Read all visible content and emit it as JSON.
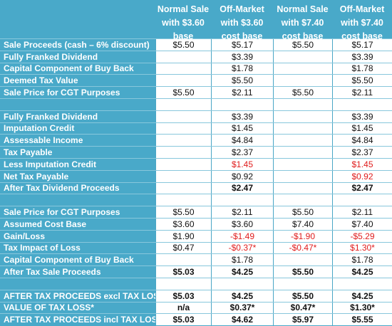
{
  "headers": [
    "Normal Sale with $3.60 base",
    "Off-Market with $3.60 cost base",
    "Normal Sale with $7.40 cost base",
    "Off-Market with $7.40 cost base"
  ],
  "rows": [
    {
      "label": "Sale Proceeds (cash – 6% discount)",
      "cells": [
        "$5.50",
        "$5.17",
        "$5.50",
        "$5.17"
      ]
    },
    {
      "label": "Fully Franked Dividend",
      "cells": [
        "",
        "$3.39",
        "",
        "$3.39"
      ]
    },
    {
      "label": "Capital Component  of Buy Back",
      "cells": [
        "",
        "$1.78",
        "",
        "$1.78"
      ]
    },
    {
      "label": "Deemed Tax Value",
      "cells": [
        "",
        "$5.50",
        "",
        "$5.50"
      ]
    },
    {
      "label": "Sale Price for CGT Purposes",
      "cells": [
        "$5.50",
        "$2.11",
        "$5.50",
        "$2.11"
      ]
    },
    {
      "label": "",
      "cells": [
        "",
        "",
        "",
        ""
      ]
    },
    {
      "label": "Fully Franked Dividend",
      "cells": [
        "",
        "$3.39",
        "",
        "$3.39"
      ]
    },
    {
      "label": "Imputation Credit",
      "cells": [
        "",
        "$1.45",
        "",
        "$1.45"
      ]
    },
    {
      "label": "Assessable Income",
      "cells": [
        "",
        "$4.84",
        "",
        "$4.84"
      ]
    },
    {
      "label": "Tax Payable",
      "cells": [
        "",
        "$2.37",
        "",
        "$2.37"
      ]
    },
    {
      "label": "Less Imputation Credit",
      "cells": [
        "",
        "$1.45",
        "",
        "$1.45"
      ]
    },
    {
      "label": "Net Tax Payable",
      "cells": [
        "",
        "$0.92",
        "",
        "$0.92"
      ]
    },
    {
      "label": "After Tax Dividend Proceeds",
      "cells": [
        "",
        "$2.47",
        "",
        "$2.47"
      ]
    },
    {
      "label": "",
      "cells": [
        "",
        "",
        "",
        ""
      ]
    },
    {
      "label": "Sale Price for CGT Purposes",
      "cells": [
        "$5.50",
        "$2.11",
        "$5.50",
        "$2.11"
      ]
    },
    {
      "label": "Assumed Cost Base",
      "cells": [
        "$3.60",
        "$3.60",
        "$7.40",
        "$7.40"
      ]
    },
    {
      "label": "Gain/Loss",
      "cells": [
        "$1.90",
        "-$1.49",
        "-$1.90",
        "-$5.29"
      ]
    },
    {
      "label": "Tax Impact of Loss",
      "cells": [
        "$0.47",
        "-$0.37*",
        "-$0.47*",
        "$1.30*"
      ]
    },
    {
      "label": "Capital Component  of Buy Back",
      "cells": [
        "",
        "$1.78",
        "",
        "$1.78"
      ]
    },
    {
      "label": "After Tax Sale Proceeds",
      "cells": [
        "$5.03",
        "$4.25",
        "$5.50",
        "$4.25"
      ]
    },
    {
      "label": "",
      "cells": [
        "",
        "",
        "",
        ""
      ]
    },
    {
      "label": "AFTER TAX PROCEEDS excl TAX LOSS",
      "cells": [
        "$5.03",
        "$4.25",
        "$5.50",
        "$4.25"
      ]
    },
    {
      "label": "VALUE OF TAX LOSS*",
      "cells": [
        "n/a",
        "$0.37*",
        "$0.47*",
        "$1.30*"
      ]
    },
    {
      "label": "AFTER TAX PROCEEDS incl TAX LOSS",
      "cells": [
        "$5.03",
        "$4.62",
        "$5.97",
        "$5.55"
      ]
    }
  ],
  "colors": {
    "header_bg": "#49a9c9",
    "negative_text": "#e01c1c"
  }
}
